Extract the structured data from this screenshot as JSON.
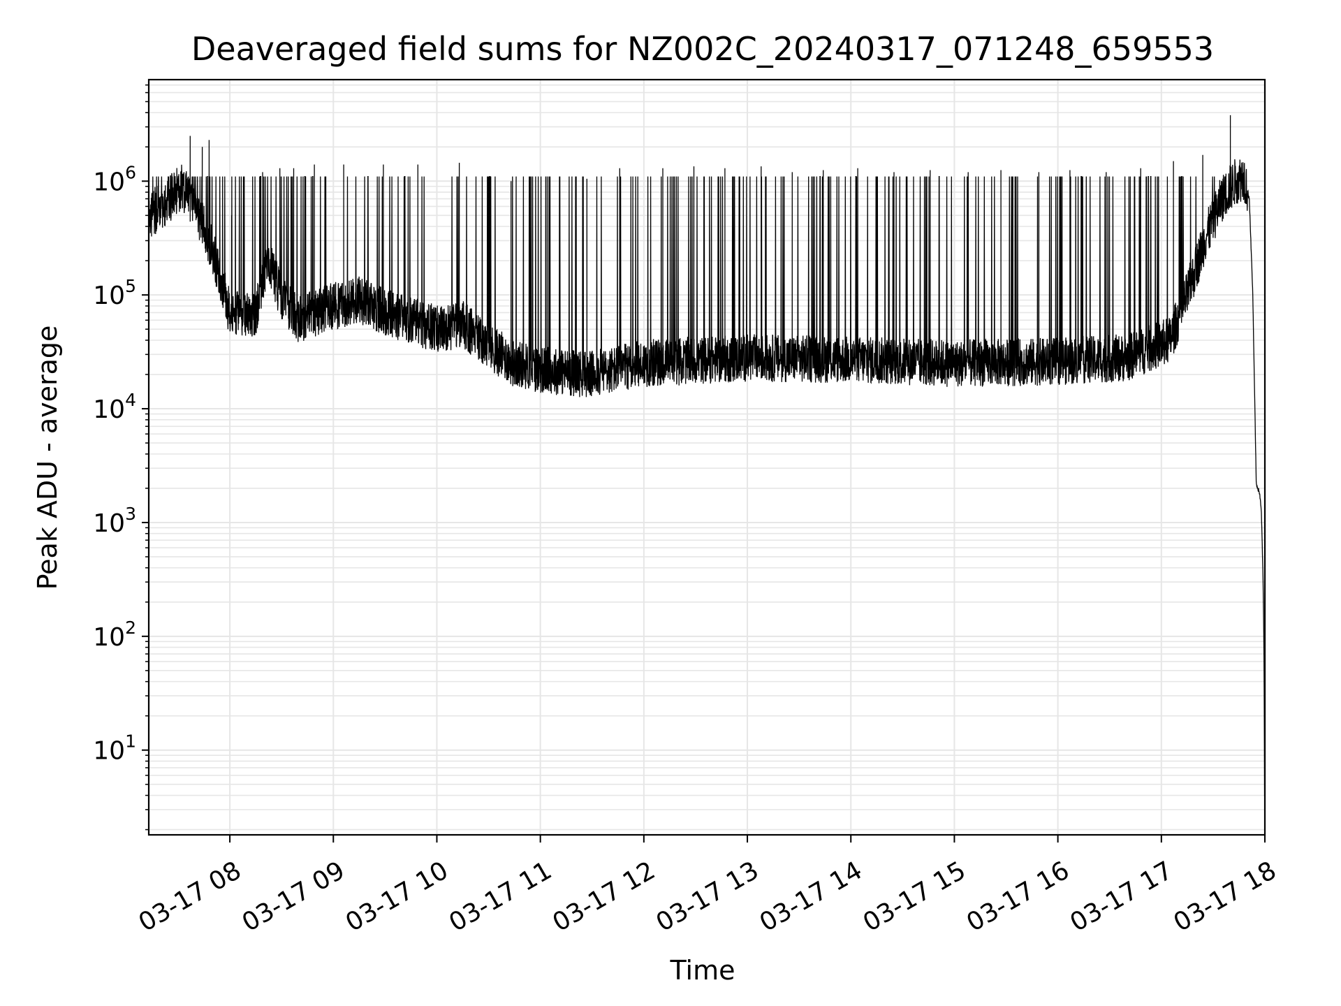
{
  "chart_data": {
    "type": "line",
    "title": "Deaveraged field sums for NZ002C_20240317_071248_659553",
    "xlabel": "Time",
    "ylabel": "Peak ADU - average",
    "yscale": "log",
    "grid": true,
    "legend": "none",
    "line_color": "#000000",
    "grid_color": "#e6e6e6",
    "xlim": [
      "2024-03-17 07:13",
      "2024-03-17 18:00"
    ],
    "ylim": [
      1.8,
      7800000
    ],
    "x_ticks": [
      {
        "value": "2024-03-17 08:00",
        "label": "03-17 08"
      },
      {
        "value": "2024-03-17 09:00",
        "label": "03-17 09"
      },
      {
        "value": "2024-03-17 10:00",
        "label": "03-17 10"
      },
      {
        "value": "2024-03-17 11:00",
        "label": "03-17 11"
      },
      {
        "value": "2024-03-17 12:00",
        "label": "03-17 12"
      },
      {
        "value": "2024-03-17 13:00",
        "label": "03-17 13"
      },
      {
        "value": "2024-03-17 14:00",
        "label": "03-17 14"
      },
      {
        "value": "2024-03-17 15:00",
        "label": "03-17 15"
      },
      {
        "value": "2024-03-17 16:00",
        "label": "03-17 16"
      },
      {
        "value": "2024-03-17 17:00",
        "label": "03-17 17"
      },
      {
        "value": "2024-03-17 18:00",
        "label": "03-17 18"
      }
    ],
    "y_ticks": [
      {
        "value": 10,
        "base": "10",
        "exp": "1"
      },
      {
        "value": 100,
        "base": "10",
        "exp": "2"
      },
      {
        "value": 1000,
        "base": "10",
        "exp": "3"
      },
      {
        "value": 10000,
        "base": "10",
        "exp": "4"
      },
      {
        "value": 100000,
        "base": "10",
        "exp": "5"
      },
      {
        "value": 1000000,
        "base": "10",
        "exp": "6"
      }
    ],
    "series": [
      {
        "baseline": {
          "x": [
            "2024-03-17 07:13",
            "2024-03-17 07:20",
            "2024-03-17 07:27",
            "2024-03-17 07:32",
            "2024-03-17 07:40",
            "2024-03-17 07:48",
            "2024-03-17 07:55",
            "2024-03-17 08:00",
            "2024-03-17 08:08",
            "2024-03-17 08:15",
            "2024-03-17 08:22",
            "2024-03-17 08:30",
            "2024-03-17 08:40",
            "2024-03-17 08:50",
            "2024-03-17 09:00",
            "2024-03-17 09:15",
            "2024-03-17 09:30",
            "2024-03-17 09:45",
            "2024-03-17 10:00",
            "2024-03-17 10:15",
            "2024-03-17 10:30",
            "2024-03-17 10:45",
            "2024-03-17 11:00",
            "2024-03-17 11:30",
            "2024-03-17 12:00",
            "2024-03-17 13:00",
            "2024-03-17 14:00",
            "2024-03-17 15:00",
            "2024-03-17 16:00",
            "2024-03-17 16:40",
            "2024-03-17 17:05",
            "2024-03-17 17:15",
            "2024-03-17 17:25",
            "2024-03-17 17:35",
            "2024-03-17 17:43",
            "2024-03-17 17:48",
            "2024-03-17 17:51",
            "2024-03-17 17:53",
            "2024-03-17 17:55",
            "2024-03-17 17:57",
            "2024-03-17 17:58",
            "2024-03-17 17:59",
            "2024-03-17 17:59:30",
            "2024-03-17 17:59:50"
          ],
          "y": [
            500000,
            600000,
            750000,
            900000,
            600000,
            300000,
            130000,
            70000,
            65000,
            70000,
            220000,
            90000,
            60000,
            70000,
            80000,
            90000,
            70000,
            60000,
            50000,
            55000,
            35000,
            25000,
            22000,
            20000,
            25000,
            28000,
            27000,
            25000,
            26000,
            28000,
            40000,
            100000,
            300000,
            700000,
            1000000,
            1100000,
            700000,
            100000,
            2200,
            1800,
            1200,
            300,
            60,
            4
          ]
        },
        "spikes": {
          "x": [
            "2024-03-17 07:37",
            "2024-03-17 07:44",
            "2024-03-17 07:48",
            "2024-03-17 08:01",
            "2024-03-17 08:19",
            "2024-03-17 08:29",
            "2024-03-17 08:37",
            "2024-03-17 08:49",
            "2024-03-17 09:06",
            "2024-03-17 09:29",
            "2024-03-17 09:49",
            "2024-03-17 10:13",
            "2024-03-17 10:43",
            "2024-03-17 11:04",
            "2024-03-17 11:27",
            "2024-03-17 11:46",
            "2024-03-17 12:11",
            "2024-03-17 12:29",
            "2024-03-17 12:47",
            "2024-03-17 13:08",
            "2024-03-17 13:26",
            "2024-03-17 13:44",
            "2024-03-17 14:04",
            "2024-03-17 14:25",
            "2024-03-17 14:46",
            "2024-03-17 15:08",
            "2024-03-17 15:27",
            "2024-03-17 15:49",
            "2024-03-17 16:07",
            "2024-03-17 16:28",
            "2024-03-17 16:48",
            "2024-03-17 17:07",
            "2024-03-17 17:24",
            "2024-03-17 17:40"
          ],
          "y": [
            2500000,
            2000000,
            2300000,
            500000,
            1200000,
            1300000,
            1300000,
            1400000,
            1400000,
            1400000,
            1400000,
            1450000,
            1000000,
            1100000,
            1050000,
            1300000,
            1300000,
            1350000,
            1300000,
            1350000,
            1200000,
            1250000,
            1300000,
            1200000,
            1250000,
            1200000,
            1250000,
            1200000,
            1250000,
            1200000,
            1300000,
            1500000,
            1700000,
            3800000
          ]
        }
      }
    ]
  }
}
